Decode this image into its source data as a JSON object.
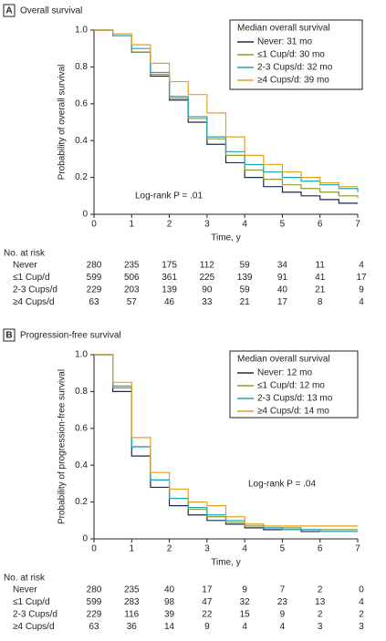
{
  "chart_data": [
    {
      "type": "line",
      "panel": "A",
      "title": "Overall survival",
      "ylabel": "Probability of overall survival",
      "xlabel": "Time, y",
      "annotation": "Log-rank P = .01",
      "legend_title": "Median overall survival",
      "step": true,
      "x": [
        0,
        0.5,
        1,
        1.5,
        2,
        2.5,
        3,
        3.5,
        4,
        4.5,
        5,
        5.5,
        6,
        6.5,
        7
      ],
      "xlim": [
        0,
        7
      ],
      "xticks": [
        0,
        1,
        2,
        3,
        4,
        5,
        6,
        7
      ],
      "ylim": [
        0,
        1
      ],
      "yticks": [
        0,
        0.2,
        0.4,
        0.6,
        0.8,
        {
          "value": 1,
          "label": "1.0"
        }
      ],
      "series": [
        {
          "name": "Never: 31 mo",
          "color": "#1c2b45",
          "values": [
            1,
            0.97,
            0.88,
            0.75,
            0.62,
            0.5,
            0.38,
            0.28,
            0.2,
            0.15,
            0.12,
            0.1,
            0.08,
            0.06,
            0.06
          ]
        },
        {
          "name": "≤1 Cup/d: 30 mo",
          "color": "#8c9a2c",
          "values": [
            1,
            0.98,
            0.88,
            0.76,
            0.63,
            0.52,
            0.41,
            0.32,
            0.24,
            0.19,
            0.16,
            0.14,
            0.12,
            0.1,
            0.09
          ]
        },
        {
          "name": "2-3 Cups/d: 32 mo",
          "color": "#1ba5bb",
          "values": [
            1,
            0.97,
            0.9,
            0.77,
            0.64,
            0.53,
            0.42,
            0.34,
            0.27,
            0.23,
            0.2,
            0.18,
            0.16,
            0.14,
            0.12
          ]
        },
        {
          "name": "≥4 Cups/d: 39 mo",
          "color": "#e3a21f",
          "values": [
            1,
            0.98,
            0.92,
            0.82,
            0.72,
            0.65,
            0.55,
            0.42,
            0.32,
            0.27,
            0.23,
            0.2,
            0.17,
            0.15,
            0.15
          ]
        }
      ],
      "risk_table": {
        "title": "No. at risk",
        "rows": [
          {
            "label": "Never",
            "values": [
              280,
              235,
              175,
              112,
              59,
              34,
              11,
              4
            ]
          },
          {
            "label": "≤1 Cup/d",
            "values": [
              599,
              506,
              361,
              225,
              139,
              91,
              41,
              17
            ]
          },
          {
            "label": "2-3 Cups/d",
            "values": [
              229,
              203,
              139,
              90,
              59,
              40,
              21,
              9
            ]
          },
          {
            "label": "≥4 Cups/d",
            "values": [
              63,
              57,
              46,
              33,
              21,
              17,
              8,
              4
            ]
          }
        ]
      }
    },
    {
      "type": "line",
      "panel": "B",
      "title": "Progression-free survival",
      "ylabel": "Probability of progression-free survival",
      "xlabel": "Time, y",
      "annotation": "Log-rank P = .04",
      "legend_title": "Median overall survival",
      "step": true,
      "x": [
        0,
        0.5,
        1,
        1.5,
        2,
        2.5,
        3,
        3.5,
        4,
        4.5,
        5,
        5.5,
        6,
        6.5,
        7
      ],
      "xlim": [
        0,
        7
      ],
      "xticks": [
        0,
        1,
        2,
        3,
        4,
        5,
        6,
        7
      ],
      "ylim": [
        0,
        1
      ],
      "yticks": [
        0,
        0.2,
        0.4,
        0.6,
        0.8,
        {
          "value": 1,
          "label": "1.0"
        }
      ],
      "series": [
        {
          "name": "Never: 12 mo",
          "color": "#1c2b45",
          "values": [
            1,
            0.8,
            0.45,
            0.28,
            0.18,
            0.13,
            0.1,
            0.08,
            0.06,
            0.05,
            0.05,
            0.04,
            0.04,
            0.04,
            0.04
          ]
        },
        {
          "name": "≤1 Cup/d: 12 mo",
          "color": "#8c9a2c",
          "values": [
            1,
            0.83,
            0.5,
            0.32,
            0.22,
            0.16,
            0.12,
            0.09,
            0.07,
            0.06,
            0.06,
            0.05,
            0.05,
            0.05,
            0.05
          ]
        },
        {
          "name": "2-3 Cups/d: 13 mo",
          "color": "#1ba5bb",
          "values": [
            1,
            0.82,
            0.5,
            0.32,
            0.22,
            0.17,
            0.13,
            0.1,
            0.08,
            0.06,
            0.05,
            0.05,
            0.04,
            0.04,
            0.04
          ]
        },
        {
          "name": "≥4 Cups/d: 14 mo",
          "color": "#e3a21f",
          "values": [
            1,
            0.85,
            0.55,
            0.36,
            0.27,
            0.2,
            0.18,
            0.12,
            0.08,
            0.07,
            0.07,
            0.07,
            0.07,
            0.07,
            0.07
          ]
        }
      ],
      "risk_table": {
        "title": "No. at risk",
        "rows": [
          {
            "label": "Never",
            "values": [
              280,
              235,
              40,
              17,
              9,
              7,
              2,
              0
            ]
          },
          {
            "label": "≤1 Cup/d",
            "values": [
              599,
              283,
              98,
              47,
              32,
              23,
              13,
              4
            ]
          },
          {
            "label": "2-3 Cups/d",
            "values": [
              229,
              116,
              39,
              22,
              15,
              9,
              2,
              2
            ]
          },
          {
            "label": "≥4 Cups/d",
            "values": [
              63,
              36,
              14,
              9,
              4,
              4,
              3,
              3
            ]
          }
        ]
      }
    }
  ]
}
